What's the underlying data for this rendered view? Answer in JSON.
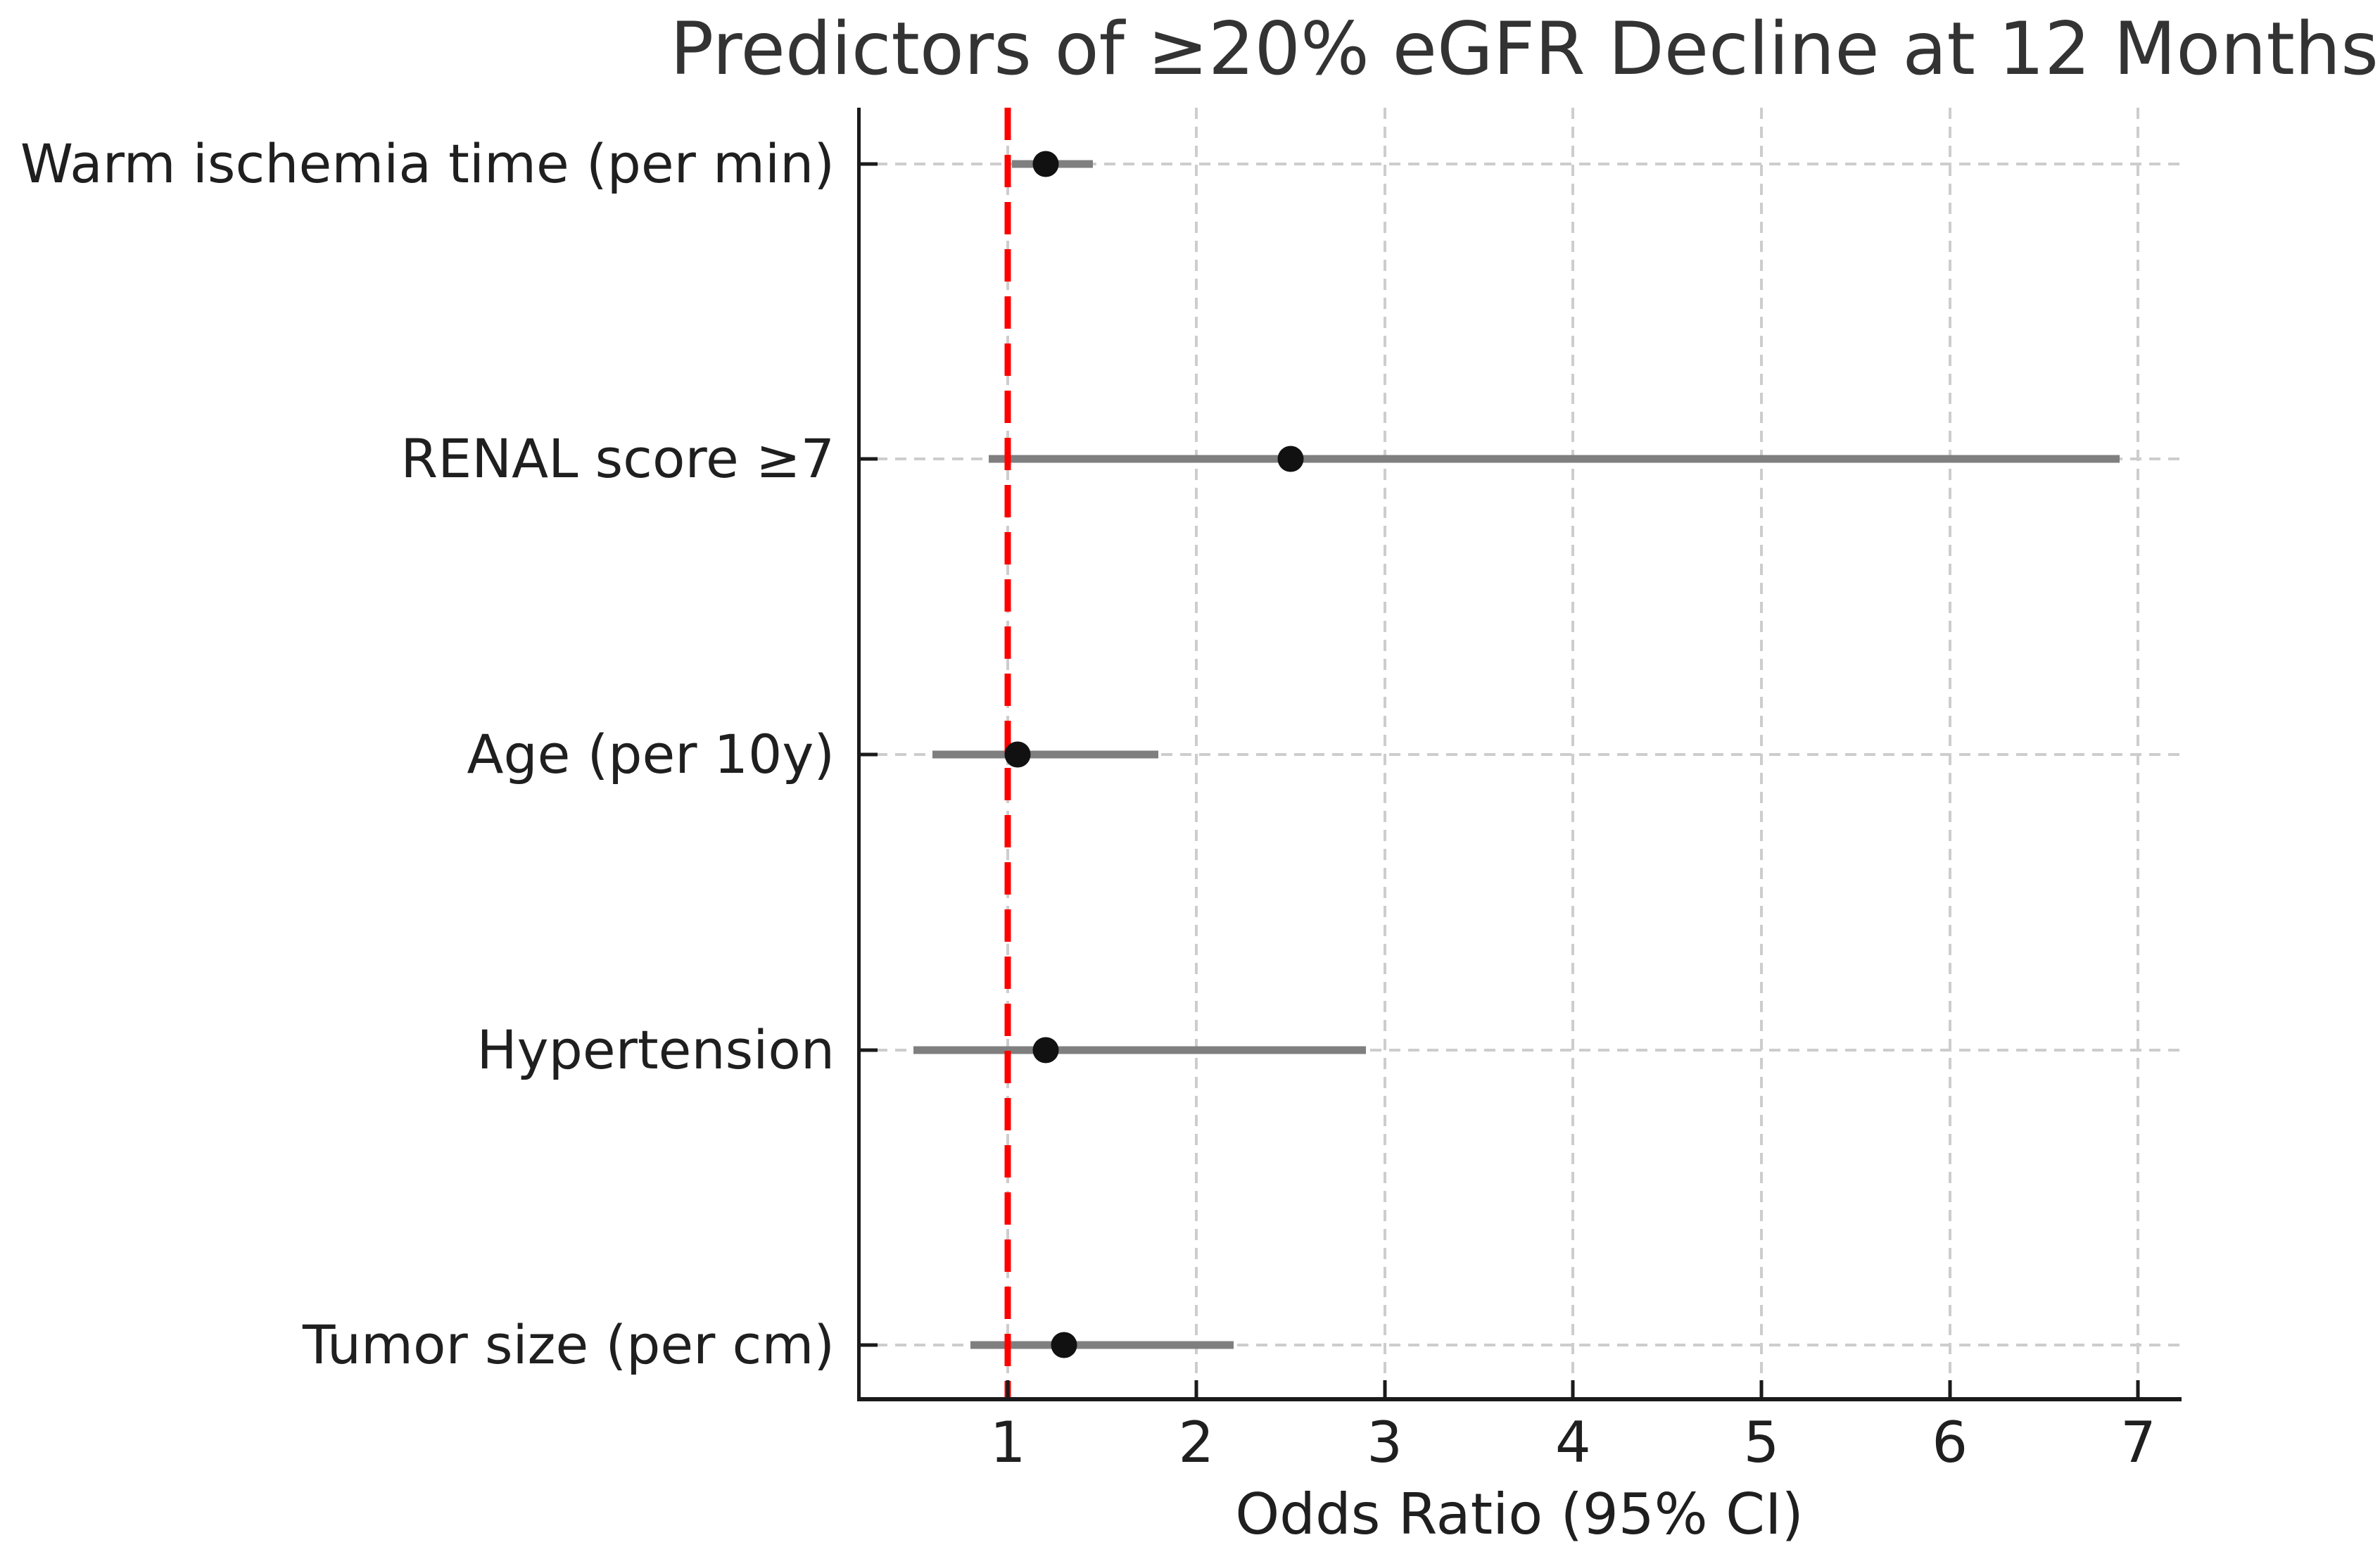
{
  "title": "Predictors of ≥20% eGFR Decline at 12 Months",
  "chart_data": {
    "type": "scatter",
    "subtype": "forest-plot",
    "title": "Predictors of ≥20% eGFR Decline at 12 Months",
    "xlabel": "Odds Ratio (95% CI)",
    "categories": [
      "Warm ischemia time (per min)",
      "RENAL score ≥7",
      "Age (per 10y)",
      "Hypertension",
      "Tumor size (per cm)"
    ],
    "rows": [
      {
        "label": "Warm ischemia time (per min)",
        "or": 1.2,
        "ci_low": 1.02,
        "ci_high": 1.45
      },
      {
        "label": "RENAL score ≥7",
        "or": 2.5,
        "ci_low": 0.9,
        "ci_high": 6.9
      },
      {
        "label": "Age (per 10y)",
        "or": 1.05,
        "ci_low": 0.6,
        "ci_high": 1.8
      },
      {
        "label": "Hypertension",
        "or": 1.2,
        "ci_low": 0.5,
        "ci_high": 2.9
      },
      {
        "label": "Tumor size (per cm)",
        "or": 1.3,
        "ci_low": 0.8,
        "ci_high": 2.2
      }
    ],
    "xticks": [
      1,
      2,
      3,
      4,
      5,
      6,
      7
    ],
    "xlim": [
      0.2,
      7.23
    ],
    "reference_line": {
      "x": 1,
      "color": "#ff0000",
      "style": "dashed"
    },
    "grid": true,
    "legend": null,
    "colors": {
      "point": "#111111",
      "ci_bar": "#7f7f7f",
      "grid": "#cdcdcd",
      "reference": "#ff0000",
      "axis": "#1a1a1a"
    }
  }
}
